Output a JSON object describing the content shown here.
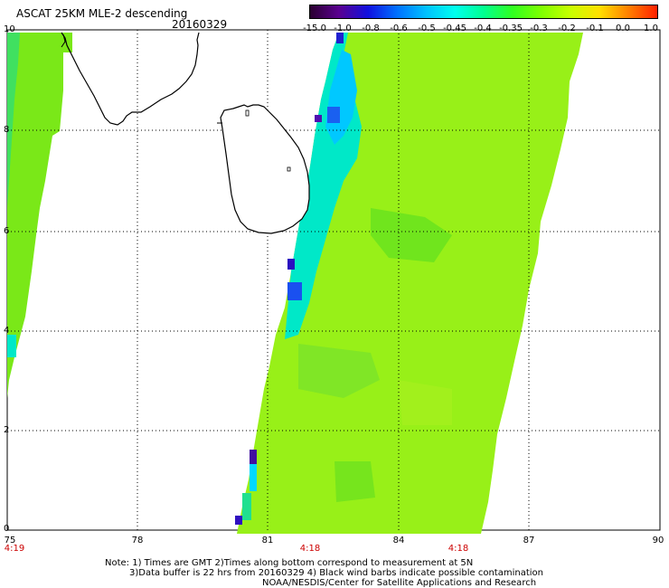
{
  "header": {
    "title": "ASCAT 25KM MLE-2 descending",
    "date": "20160329"
  },
  "colorbar": {
    "labels": [
      "-15.0",
      "-1.0",
      "-0.8",
      "-0.6",
      "-0.5",
      "-0.45",
      "-0.4",
      "-0.35",
      "-0.3",
      "-0.2",
      "-0.1",
      "0.0",
      "1.0"
    ],
    "colors": [
      "#2a0030",
      "#5a0090",
      "#1010e0",
      "#0070ff",
      "#00c0ff",
      "#00ffee",
      "#00ff90",
      "#30ff20",
      "#80ff00",
      "#c8ff00",
      "#ffe000",
      "#ff8000",
      "#ff2000"
    ]
  },
  "axes": {
    "x_ticks": [
      "75",
      "78",
      "81",
      "84",
      "87",
      "90"
    ],
    "y_ticks": [
      "0",
      "2",
      "4",
      "6",
      "8",
      "10"
    ],
    "lon_range": [
      75,
      90
    ],
    "lat_range": [
      0,
      10
    ],
    "grid": "dotted"
  },
  "time_labels": [
    {
      "text": "4:19",
      "lon": 75
    },
    {
      "text": "4:18",
      "lon": 82
    },
    {
      "text": "4:18",
      "lon": 85.3
    }
  ],
  "notes": {
    "line1": "Note: 1) Times are GMT 2)Times along bottom correspond to measurement at 5N",
    "line2": "3)Data buffer is 22 hrs from 20160329 4) Black wind barbs indicate possible contamination",
    "line3": "NOAA/NESDIS/Center for Satellite Applications and Research"
  },
  "colors": {
    "swath_main": "#98f018",
    "swath_edge": "#00e8c8",
    "swath_low": "#2020d0",
    "coast": "#000000"
  }
}
